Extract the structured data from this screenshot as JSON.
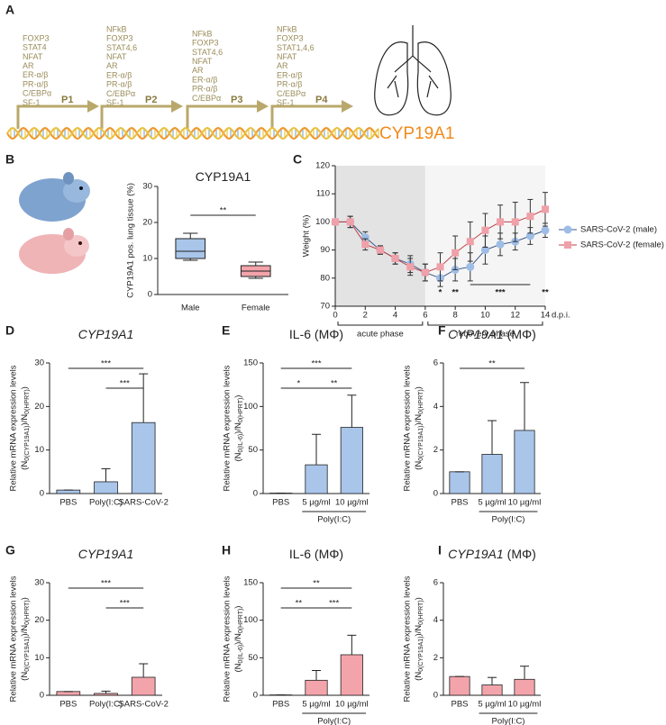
{
  "panel_labels": [
    "A",
    "B",
    "C",
    "D",
    "E",
    "F",
    "G",
    "H",
    "I"
  ],
  "panel_a": {
    "gene": "CYP19A1",
    "promoters": [
      {
        "name": "P1",
        "factors": [
          "FOXP3",
          "STAT4",
          "NFAT",
          "AR",
          "ER-α/β",
          "PR-α/β",
          "C/EBPα",
          "SF-1"
        ]
      },
      {
        "name": "P2",
        "factors": [
          "NFkB",
          "FOXP3",
          "STAT4,6",
          "NFAT",
          "AR",
          "ER-α/β",
          "PR-α/β",
          "C/EBPα",
          "SF-1"
        ]
      },
      {
        "name": "P3",
        "factors": [
          "NFkB",
          "FOXP3",
          "STAT4,6",
          "NFAT",
          "AR",
          "ER-α/β",
          "PR-α/β",
          "C/EBPα"
        ]
      },
      {
        "name": "P4",
        "factors": [
          "NFkB",
          "FOXP3",
          "STAT1,4,6",
          "NFAT",
          "AR",
          "ER-α/β",
          "PR-α/β",
          "C/EBPα",
          "SF-1"
        ]
      }
    ]
  },
  "chart_data": [
    {
      "type": "box",
      "title": "CYP19A1",
      "y_label": "CYP19A1 pos. lung tissue (%)",
      "categories": [
        "Male",
        "Female"
      ],
      "boxes": [
        {
          "min": 9.5,
          "q1": 10,
          "median": 12,
          "q3": 15.5,
          "max": 17,
          "color": "#a9c5ea"
        },
        {
          "min": 4.5,
          "q1": 5,
          "median": 6.5,
          "q3": 8,
          "max": 9,
          "color": "#f3a4ab"
        }
      ],
      "ylim": [
        0,
        30
      ],
      "yticks": [
        0,
        10,
        20,
        30
      ],
      "significance": [
        {
          "from": "Male",
          "to": "Female",
          "label": "**"
        }
      ]
    },
    {
      "type": "line",
      "y_label": "Weight (%)",
      "x_unit": "d.p.i.",
      "x": [
        0,
        1,
        2,
        3,
        4,
        5,
        6,
        7,
        8,
        9,
        10,
        11,
        12,
        13,
        14
      ],
      "xlim": [
        0,
        14
      ],
      "xticks": [
        0,
        2,
        4,
        6,
        8,
        10,
        12,
        14
      ],
      "ylim": [
        70,
        120
      ],
      "yticks": [
        70,
        80,
        90,
        100,
        110,
        120
      ],
      "phases": [
        {
          "label": "acute phase",
          "from": 0,
          "to": 6,
          "color": "#e3e3e3"
        },
        {
          "label": "recovery phase",
          "from": 6,
          "to": 14,
          "color": "#f5f5f5"
        }
      ],
      "series": [
        {
          "name": "SARS-CoV-2 (male)",
          "color": "#9dbde6",
          "marker": "circle",
          "values": [
            100,
            100,
            94.5,
            90,
            87,
            85,
            82,
            80,
            83,
            84,
            90,
            92,
            93,
            95,
            97
          ],
          "errors": [
            0,
            2,
            2,
            1.5,
            2,
            3,
            3,
            3,
            4,
            5,
            5,
            4,
            3,
            3,
            2.5
          ]
        },
        {
          "name": "SARS-CoV-2 (female)",
          "color": "#f0a0a8",
          "marker": "square",
          "values": [
            100,
            100,
            92,
            90,
            87,
            84,
            82,
            84,
            89,
            93,
            97,
            100,
            100,
            102,
            104.5
          ],
          "errors": [
            0,
            2,
            2,
            1.5,
            2,
            3,
            3,
            5,
            6,
            7,
            6,
            6,
            7,
            6,
            6
          ]
        }
      ],
      "annotations": [
        {
          "label": "*",
          "from": 7,
          "to": 7
        },
        {
          "label": "**",
          "from": 8,
          "to": 8
        },
        {
          "label": "***",
          "from": 9,
          "to": 13
        },
        {
          "label": "**",
          "from": 14,
          "to": 14
        }
      ]
    },
    {
      "type": "bar",
      "title": "CYP19A1",
      "title_italic": true,
      "y_label": "Relative mRNA expression levels",
      "y_label_2": [
        "(N",
        "0(CYP19A1)",
        ")/N",
        "0(HPRT)",
        ")"
      ],
      "categories": [
        "PBS",
        "Poly(I:C)",
        "SARS-CoV-2"
      ],
      "values": [
        0.8,
        2.7,
        16.3
      ],
      "errors": [
        0,
        3,
        11.2
      ],
      "color": "#a9c5ea",
      "ylim": [
        0,
        30
      ],
      "yticks": [
        0,
        10,
        20,
        30
      ],
      "significance": [
        {
          "from": "PBS",
          "to": "SARS-CoV-2",
          "label": "***"
        },
        {
          "from": "Poly(I:C)",
          "to": "SARS-CoV-2",
          "label": "***"
        }
      ]
    },
    {
      "type": "bar",
      "title": "IL-6 (MΦ)",
      "title_italic": false,
      "y_label": "Relative mRNA expression levels",
      "y_label_2": [
        "(N",
        "0(IL-6)",
        ")/N",
        "0(HPRT)",
        ")"
      ],
      "categories": [
        "PBS",
        "5 µg/ml",
        "10 µg/ml"
      ],
      "values": [
        0.5,
        33,
        76
      ],
      "errors": [
        0,
        35,
        37
      ],
      "color": "#a9c5ea",
      "ylim": [
        0,
        150
      ],
      "yticks": [
        0,
        50,
        100,
        150
      ],
      "group": {
        "label": "Poly(I:C)",
        "from": "5 µg/ml",
        "to": "10 µg/ml"
      },
      "significance": [
        {
          "from": "PBS",
          "to": "10 µg/ml",
          "label": "***"
        },
        {
          "from": "PBS",
          "to": "5 µg/ml",
          "label": "*"
        },
        {
          "from": "5 µg/ml",
          "to": "10 µg/ml",
          "label": "**"
        }
      ]
    },
    {
      "type": "bar",
      "title": "CYP19A1",
      "title_italic": true,
      "title_suffix": "(MΦ)",
      "y_label": "Relative mRNA expression levels",
      "y_label_2": [
        "(N",
        "0(CYP19A1)",
        ")/N",
        "0(HPRT)",
        ")"
      ],
      "categories": [
        "PBS",
        "5 µg/ml",
        "10 µg/ml"
      ],
      "values": [
        1,
        1.8,
        2.9
      ],
      "errors": [
        0,
        1.55,
        2.2
      ],
      "color": "#a9c5ea",
      "ylim": [
        0,
        6
      ],
      "yticks": [
        0,
        2,
        4,
        6
      ],
      "group": {
        "label": "Poly(I:C)",
        "from": "5 µg/ml",
        "to": "10 µg/ml"
      },
      "significance": [
        {
          "from": "PBS",
          "to": "10 µg/ml",
          "label": "**"
        }
      ]
    },
    {
      "type": "bar",
      "title": "CYP19A1",
      "title_italic": true,
      "y_label": "Relative mRNA expression levels",
      "y_label_2": [
        "(N",
        "0(CYP19A1)",
        ")/N",
        "0(HPRT)",
        ")"
      ],
      "categories": [
        "PBS",
        "Poly(I:C)",
        "SARS-CoV-2"
      ],
      "values": [
        1,
        0.5,
        4.8
      ],
      "errors": [
        0,
        0.6,
        3.6
      ],
      "color": "#f3a4ab",
      "ylim": [
        0,
        30
      ],
      "yticks": [
        0,
        10,
        20,
        30
      ],
      "significance": [
        {
          "from": "PBS",
          "to": "SARS-CoV-2",
          "label": "***"
        },
        {
          "from": "Poly(I:C)",
          "to": "SARS-CoV-2",
          "label": "***"
        }
      ]
    },
    {
      "type": "bar",
      "title": "IL-6 (MΦ)",
      "title_italic": false,
      "y_label": "Relative mRNA expression levels",
      "y_label_2": [
        "(N",
        "0(IL-6)",
        ")/N",
        "0(HPRT)",
        ")"
      ],
      "categories": [
        "PBS",
        "5 µg/ml",
        "10 µg/ml"
      ],
      "values": [
        0.5,
        20,
        54
      ],
      "errors": [
        0,
        13,
        26
      ],
      "color": "#f3a4ab",
      "ylim": [
        0,
        150
      ],
      "yticks": [
        0,
        50,
        100,
        150
      ],
      "group": {
        "label": "Poly(I:C)",
        "from": "5 µg/ml",
        "to": "10 µg/ml"
      },
      "significance": [
        {
          "from": "PBS",
          "to": "10 µg/ml",
          "label": "**"
        },
        {
          "from": "PBS",
          "to": "5 µg/ml",
          "label": "**"
        },
        {
          "from": "5 µg/ml",
          "to": "10 µg/ml",
          "label": "***"
        }
      ]
    },
    {
      "type": "bar",
      "title": "CYP19A1",
      "title_italic": true,
      "title_suffix": "(MΦ)",
      "y_label": "Relative mRNA expression levels",
      "y_label_2": [
        "(N",
        "0(CYP19A1)",
        ")/N",
        "0(HPRT)",
        ")"
      ],
      "categories": [
        "PBS",
        "5 µg/ml",
        "10 µg/ml"
      ],
      "values": [
        1,
        0.55,
        0.85
      ],
      "errors": [
        0,
        0.4,
        0.7
      ],
      "color": "#f3a4ab",
      "ylim": [
        0,
        6
      ],
      "yticks": [
        0,
        2,
        4,
        6
      ],
      "group": {
        "label": "Poly(I:C)",
        "from": "5 µg/ml",
        "to": "10 µg/ml"
      },
      "significance": []
    }
  ]
}
